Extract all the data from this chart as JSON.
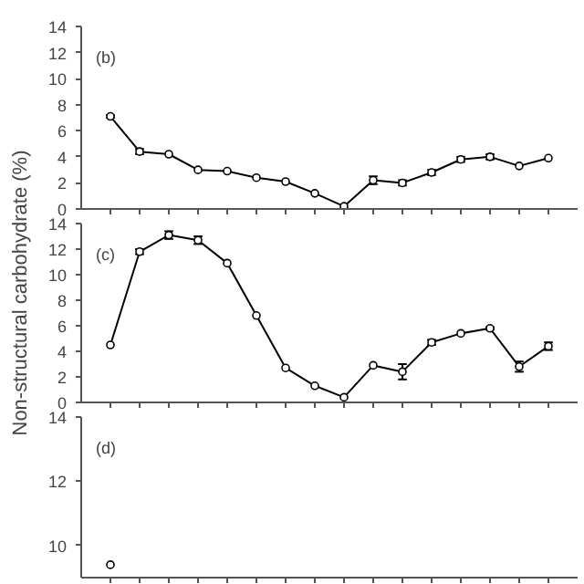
{
  "chart_data": [
    {
      "type": "line",
      "annotations": [
        "(b)"
      ],
      "categories": [
        null,
        null,
        null,
        null,
        null,
        null,
        null,
        null,
        null,
        null,
        null,
        null,
        null,
        null,
        null,
        null
      ],
      "series": [
        {
          "color": "#000000",
          "values": [
            7.1,
            4.4,
            4.2,
            3.0,
            2.9,
            2.4,
            2.1,
            1.2,
            0.2,
            2.2,
            2.0,
            2.8,
            3.8,
            4.0,
            3.3,
            3.9
          ],
          "errors": [
            0.1,
            0.2,
            null,
            null,
            null,
            null,
            null,
            null,
            null,
            0.3,
            0.2,
            0.2,
            0.2,
            0.2,
            null,
            null
          ]
        }
      ],
      "ylim": [
        0,
        14
      ],
      "yticks": [
        0,
        2,
        4,
        6,
        8,
        10,
        12,
        14
      ],
      "grid": false,
      "marker": "circle",
      "line_style": "solid",
      "tick_labels": "y"
    },
    {
      "type": "line",
      "annotations": [
        "(c)"
      ],
      "ylabel": "Non-structural carbohydrate (%)",
      "categories": [
        null,
        null,
        null,
        null,
        null,
        null,
        null,
        null,
        null,
        null,
        null,
        null,
        null,
        null,
        null,
        null
      ],
      "series": [
        {
          "color": "#000000",
          "values": [
            4.5,
            11.8,
            13.1,
            12.7,
            10.9,
            6.8,
            2.7,
            1.3,
            0.4,
            2.9,
            2.4,
            4.7,
            5.4,
            5.8,
            2.8,
            4.4
          ],
          "errors": [
            null,
            0.2,
            0.3,
            0.3,
            null,
            null,
            null,
            null,
            null,
            null,
            0.6,
            0.2,
            null,
            0.1,
            0.4,
            0.3
          ]
        }
      ],
      "ylim": [
        0,
        14
      ],
      "yticks": [
        0,
        2,
        4,
        6,
        8,
        10,
        12,
        14
      ],
      "grid": false,
      "marker": "circle",
      "line_style": "solid",
      "tick_labels": "y"
    },
    {
      "type": "line",
      "annotations": [
        "(d)"
      ],
      "categories": [
        null,
        null,
        null,
        null,
        null,
        null,
        null,
        null,
        null,
        null,
        null,
        null,
        null,
        null,
        null,
        null
      ],
      "series": [
        {
          "color": "#000000",
          "values": [
            9.4,
            null,
            null,
            null,
            null,
            null,
            null,
            null,
            null,
            null,
            null,
            null,
            null,
            null,
            null,
            null
          ]
        }
      ],
      "ylim": [
        9,
        14
      ],
      "yticks": [
        10,
        12,
        14
      ],
      "grid": false,
      "marker": "circle",
      "line_style": "solid",
      "tick_labels": "y"
    }
  ]
}
